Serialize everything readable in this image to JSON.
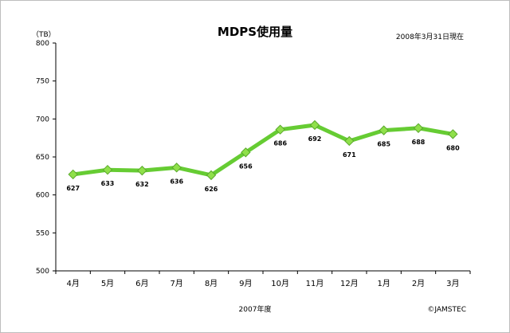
{
  "chart_data": {
    "type": "line",
    "title": "MDPS使用量",
    "subtitle": "2008年3月31日現在",
    "unit_label": "（TB）",
    "xlabel": "2007年度",
    "credit": "©JAMSTEC",
    "categories": [
      "4月",
      "5月",
      "6月",
      "7月",
      "8月",
      "9月",
      "10月",
      "11月",
      "12月",
      "1月",
      "2月",
      "3月"
    ],
    "values": [
      627,
      633,
      632,
      636,
      626,
      656,
      686,
      692,
      671,
      685,
      688,
      680
    ],
    "ylim": [
      500,
      800
    ],
    "yticks": [
      500,
      550,
      600,
      650,
      700,
      750,
      800
    ],
    "grid": false,
    "legend": "none",
    "line_color": "#66cc33",
    "marker_color": "#8fe04a"
  }
}
